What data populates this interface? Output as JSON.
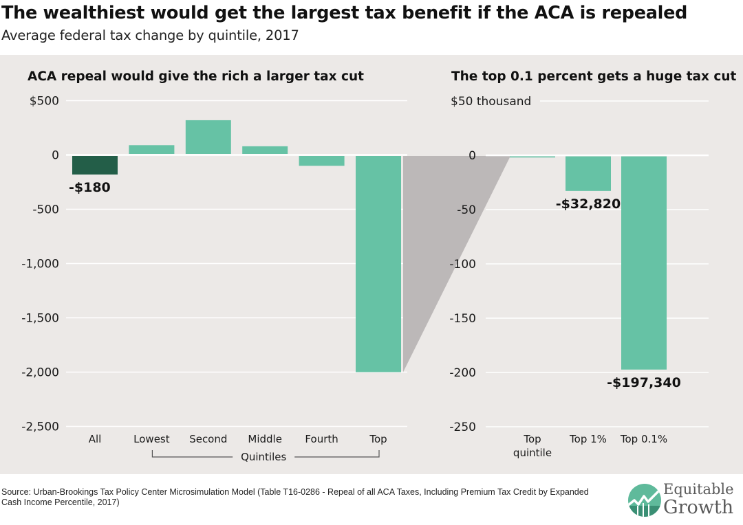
{
  "title": "The wealthiest would get the largest tax benefit if the ACA is repealed",
  "subtitle": "Average federal tax change by quintile, 2017",
  "source": "Source: Urban-Brookings Tax Policy Center Microsimulation Model (Table T16-0286 - Repeal of all ACA Taxes, Including Premium Tax Credit by Expanded Cash Income Percentile, 2017)",
  "logo": {
    "line1": "Equitable",
    "line2": "Growth",
    "icon": "growth-chart-logo-icon"
  },
  "colors": {
    "panel_bg": "#ece9e7",
    "bar": "#66c2a5",
    "bar_all": "#235e48",
    "connector": "#bcb8b8",
    "gridline": "#ffffff"
  },
  "chart_data": [
    {
      "type": "bar",
      "title": "ACA repeal would give the rich a larger tax cut",
      "xlabel": "",
      "ylabel": "",
      "unit": "dollars",
      "ylim": [
        -2500,
        500
      ],
      "yticks": [
        500,
        0,
        -500,
        -1000,
        -1500,
        -2000,
        -2500
      ],
      "ytick_labels": [
        "$500",
        "0",
        "-500",
        "-1,000",
        "-1,500",
        "-2,000",
        "-2,500"
      ],
      "categories": [
        "All",
        "Lowest",
        "Second",
        "Middle",
        "Fourth",
        "Top"
      ],
      "values": [
        -180,
        90,
        320,
        80,
        -100,
        -2000
      ],
      "highlight": [
        "All"
      ],
      "data_labels": [
        {
          "category": "All",
          "text": "-$180"
        }
      ],
      "group_label": {
        "text": "Quintiles",
        "from": "Lowest",
        "to": "Top"
      },
      "grid": true
    },
    {
      "type": "bar",
      "title": "The top 0.1 percent gets a huge tax cut",
      "xlabel": "",
      "ylabel": "",
      "unit": "thousands of dollars",
      "ylim": [
        -250,
        50
      ],
      "yticks": [
        50,
        0,
        -50,
        -100,
        -150,
        -200,
        -250
      ],
      "ytick_labels": [
        "$50 thousand",
        "0",
        "-50",
        "-100",
        "-150",
        "-200",
        "-250"
      ],
      "categories": [
        "Top quintile",
        "Top 1%",
        "Top 0.1%"
      ],
      "category_lines": [
        [
          "Top",
          "quintile"
        ],
        [
          "Top 1%"
        ],
        [
          "Top 0.1%"
        ]
      ],
      "values": [
        -2.0,
        -32.82,
        -197.34
      ],
      "data_labels": [
        {
          "category": "Top 1%",
          "text": "-$32,820"
        },
        {
          "category": "Top 0.1%",
          "text": "-$197,340"
        }
      ],
      "grid": true
    }
  ]
}
